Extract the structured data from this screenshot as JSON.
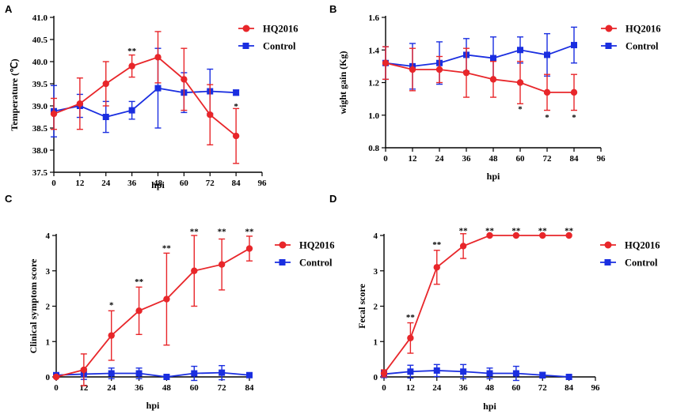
{
  "colors": {
    "hq": "#e8262a",
    "control": "#1a2ee0"
  },
  "chart_data": [
    {
      "panel": "A",
      "type": "line",
      "xlabel": "hpi",
      "ylabel": "Temperature (℃)",
      "xlim": [
        0,
        96
      ],
      "ylim": [
        37.5,
        41.0
      ],
      "xticks": [
        0,
        12,
        24,
        36,
        48,
        60,
        72,
        84,
        96
      ],
      "yticks": [
        37.5,
        38.0,
        38.5,
        39.0,
        39.5,
        40.0,
        40.5,
        41.0
      ],
      "ytick_labels": [
        "37.5",
        "38.0",
        "38.5",
        "39.0",
        "39.5",
        "40.0",
        "40.5",
        "41.0"
      ],
      "legend_position": "top-right",
      "series": [
        {
          "name": "HQ2016",
          "marker": "circle",
          "color": "#e8262a",
          "x": [
            0,
            12,
            24,
            36,
            48,
            60,
            72,
            84
          ],
          "y": [
            38.82,
            39.05,
            39.5,
            39.9,
            40.1,
            39.6,
            38.8,
            38.32
          ],
          "err": [
            0.35,
            0.58,
            0.5,
            0.25,
            0.58,
            0.7,
            0.68,
            0.62
          ]
        },
        {
          "name": "Control",
          "marker": "square",
          "color": "#1a2ee0",
          "x": [
            0,
            12,
            24,
            36,
            48,
            60,
            72,
            84
          ],
          "y": [
            38.88,
            39.0,
            38.75,
            38.9,
            39.4,
            39.3,
            39.33,
            39.3
          ],
          "err": [
            0.58,
            0.26,
            0.35,
            0.2,
            0.9,
            0.45,
            0.5,
            0.06
          ]
        }
      ],
      "annotations": [
        {
          "x": 36,
          "y": 40.25,
          "text": "**"
        },
        {
          "x": 84,
          "y": 39.0,
          "text": "*"
        }
      ]
    },
    {
      "panel": "B",
      "type": "line",
      "xlabel": "hpi",
      "ylabel": "wight gain (Kg)",
      "xlim": [
        0,
        96
      ],
      "ylim": [
        0.8,
        1.6
      ],
      "xticks": [
        0,
        12,
        24,
        36,
        48,
        60,
        72,
        84,
        96
      ],
      "yticks": [
        0.8,
        1.0,
        1.2,
        1.4,
        1.6
      ],
      "ytick_labels": [
        "0.8",
        "1.0",
        "1.2",
        "1.4",
        "1.6"
      ],
      "legend_position": "top-right",
      "series": [
        {
          "name": "HQ2016",
          "marker": "circle",
          "color": "#e8262a",
          "x": [
            0,
            12,
            24,
            36,
            48,
            60,
            72,
            84
          ],
          "y": [
            1.32,
            1.28,
            1.28,
            1.26,
            1.22,
            1.2,
            1.14,
            1.14
          ],
          "err": [
            0.1,
            0.13,
            0.08,
            0.15,
            0.11,
            0.13,
            0.11,
            0.11
          ]
        },
        {
          "name": "Control",
          "marker": "square",
          "color": "#1a2ee0",
          "x": [
            0,
            12,
            24,
            36,
            48,
            60,
            72,
            84
          ],
          "y": [
            1.32,
            1.3,
            1.32,
            1.37,
            1.35,
            1.4,
            1.37,
            1.43
          ],
          "err": [
            0.1,
            0.14,
            0.13,
            0.1,
            0.13,
            0.08,
            0.13,
            0.11
          ]
        }
      ],
      "annotations": [
        {
          "x": 60,
          "y": 1.04,
          "text": "*"
        },
        {
          "x": 72,
          "y": 0.99,
          "text": "*"
        },
        {
          "x": 84,
          "y": 0.99,
          "text": "*"
        }
      ]
    },
    {
      "panel": "C",
      "type": "line",
      "xlabel": "hpi",
      "ylabel": "Clinical symptom score",
      "xlim": [
        0,
        84
      ],
      "ylim": [
        0,
        4
      ],
      "xticks": [
        0,
        12,
        24,
        36,
        48,
        60,
        72,
        84
      ],
      "yticks": [
        0,
        1,
        2,
        3,
        4
      ],
      "ytick_labels": [
        "0",
        "1",
        "2",
        "3",
        "4"
      ],
      "legend_position": "right",
      "series": [
        {
          "name": "HQ2016",
          "marker": "circle",
          "color": "#e8262a",
          "x": [
            0,
            12,
            24,
            36,
            48,
            60,
            72,
            84
          ],
          "y": [
            0,
            0.2,
            1.17,
            1.87,
            2.2,
            3.0,
            3.18,
            3.63
          ],
          "err": [
            0,
            0.45,
            0.7,
            0.67,
            1.3,
            1.0,
            0.72,
            0.35
          ]
        },
        {
          "name": "Control",
          "marker": "square",
          "color": "#1a2ee0",
          "x": [
            0,
            12,
            24,
            36,
            48,
            60,
            72,
            84
          ],
          "y": [
            0.05,
            0.08,
            0.1,
            0.1,
            0.0,
            0.1,
            0.12,
            0.05
          ],
          "err": [
            0.05,
            0.15,
            0.15,
            0.15,
            0.03,
            0.2,
            0.2,
            0.06
          ]
        }
      ],
      "annotations": [
        {
          "x": 24,
          "y": 2.05,
          "text": "*"
        },
        {
          "x": 36,
          "y": 2.7,
          "text": "**"
        },
        {
          "x": 48,
          "y": 3.65,
          "text": "**"
        },
        {
          "x": 60,
          "y": 4.12,
          "text": "**"
        },
        {
          "x": 72,
          "y": 4.12,
          "text": "**"
        },
        {
          "x": 84,
          "y": 4.12,
          "text": "**"
        }
      ]
    },
    {
      "panel": "D",
      "type": "line",
      "xlabel": "hpi",
      "ylabel": "Fecal score",
      "xlim": [
        0,
        96
      ],
      "ylim": [
        0,
        4
      ],
      "xticks": [
        0,
        12,
        24,
        36,
        48,
        60,
        72,
        84,
        96
      ],
      "yticks": [
        0,
        1,
        2,
        3,
        4
      ],
      "ytick_labels": [
        "0",
        "1",
        "2",
        "3",
        "4"
      ],
      "legend_position": "right",
      "series": [
        {
          "name": "HQ2016",
          "marker": "circle",
          "color": "#e8262a",
          "x": [
            0,
            12,
            24,
            36,
            48,
            60,
            72,
            84
          ],
          "y": [
            0.1,
            1.1,
            3.1,
            3.7,
            4.0,
            4.0,
            4.0,
            4.0
          ],
          "err": [
            0.1,
            0.43,
            0.48,
            0.35,
            0,
            0,
            0,
            0
          ]
        },
        {
          "name": "Control",
          "marker": "square",
          "color": "#1a2ee0",
          "x": [
            0,
            12,
            24,
            36,
            48,
            60,
            72,
            84
          ],
          "y": [
            0.08,
            0.15,
            0.18,
            0.15,
            0.1,
            0.1,
            0.05,
            0.0
          ],
          "err": [
            0.1,
            0.18,
            0.17,
            0.2,
            0.15,
            0.2,
            0.08,
            0.02
          ]
        }
      ],
      "annotations": [
        {
          "x": 12,
          "y": 1.7,
          "text": "**"
        },
        {
          "x": 24,
          "y": 3.75,
          "text": "**"
        },
        {
          "x": 36,
          "y": 4.15,
          "text": "**"
        },
        {
          "x": 48,
          "y": 4.15,
          "text": "**"
        },
        {
          "x": 60,
          "y": 4.15,
          "text": "**"
        },
        {
          "x": 72,
          "y": 4.15,
          "text": "**"
        },
        {
          "x": 84,
          "y": 4.15,
          "text": "**"
        }
      ]
    }
  ]
}
